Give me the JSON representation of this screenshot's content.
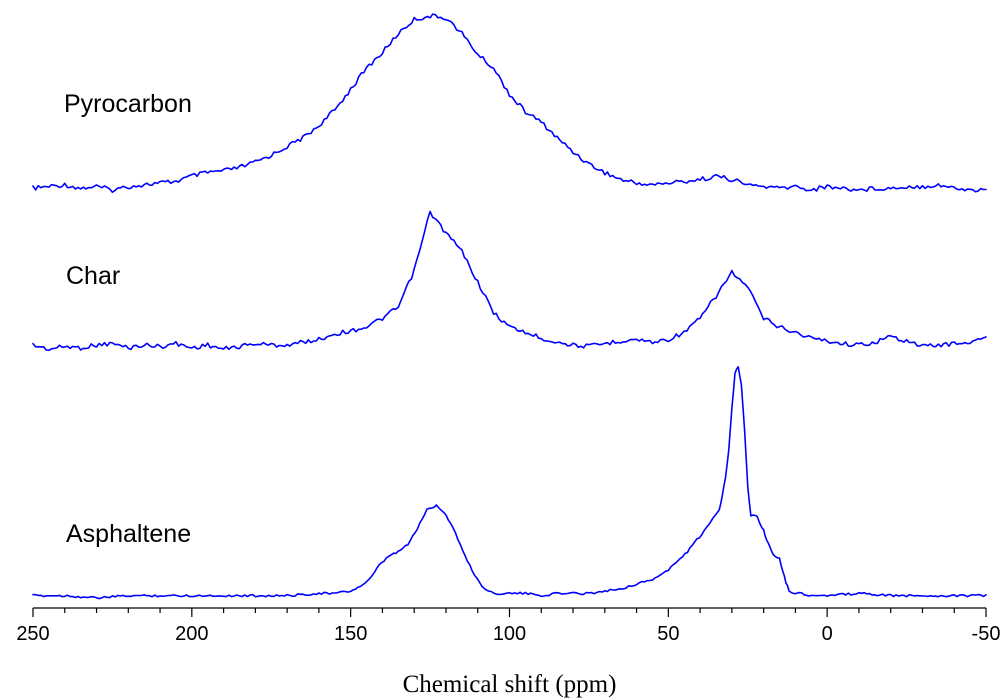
{
  "chart_data": {
    "type": "line",
    "title": "",
    "xlabel": "Chemical shift (ppm)",
    "ylabel": "",
    "xlim": [
      250,
      -50
    ],
    "x_reversed": true,
    "grid": false,
    "legend": "none (series labelled inline at left of each trace)",
    "xticks": [
      250,
      200,
      150,
      100,
      50,
      0,
      -50
    ],
    "xtick_labels": [
      "250",
      "200",
      "150",
      "100",
      "50",
      "0",
      "-50"
    ],
    "line_color": "#0000ff",
    "series": [
      {
        "name": "Pyrocarbon",
        "x": [
          250,
          245,
          240,
          235,
          230,
          225,
          220,
          215,
          210,
          205,
          200,
          195,
          190,
          185,
          180,
          175,
          170,
          165,
          160,
          155,
          150,
          145,
          140,
          135,
          130,
          125,
          120,
          115,
          110,
          105,
          100,
          95,
          90,
          85,
          80,
          75,
          70,
          65,
          60,
          55,
          50,
          45,
          40,
          35,
          30,
          25,
          20,
          15,
          10,
          5,
          0,
          -5,
          -10,
          -15,
          -20,
          -25,
          -30,
          -35,
          -40,
          -45,
          -50
        ],
        "y": [
          0.01,
          0.02,
          0.03,
          0.01,
          0.02,
          0.0,
          0.02,
          0.03,
          0.04,
          0.05,
          0.08,
          0.1,
          0.11,
          0.13,
          0.16,
          0.2,
          0.25,
          0.3,
          0.37,
          0.46,
          0.58,
          0.7,
          0.79,
          0.9,
          0.98,
          1.0,
          0.99,
          0.9,
          0.78,
          0.7,
          0.55,
          0.45,
          0.39,
          0.3,
          0.22,
          0.15,
          0.1,
          0.06,
          0.04,
          0.03,
          0.04,
          0.05,
          0.06,
          0.08,
          0.06,
          0.03,
          0.02,
          0.01,
          0.02,
          0.0,
          0.02,
          0.01,
          0.0,
          0.01,
          0.01,
          0.02,
          0.02,
          0.03,
          0.01,
          0.0,
          0.0
        ]
      },
      {
        "name": "Char",
        "x": [
          250,
          245,
          240,
          235,
          230,
          225,
          220,
          215,
          210,
          205,
          200,
          195,
          190,
          185,
          180,
          175,
          170,
          165,
          160,
          155,
          150,
          145,
          140,
          135,
          130,
          125,
          120,
          115,
          110,
          105,
          100,
          95,
          90,
          85,
          80,
          75,
          70,
          65,
          60,
          55,
          50,
          45,
          40,
          35,
          30,
          25,
          20,
          15,
          10,
          5,
          0,
          -5,
          -10,
          -15,
          -20,
          -25,
          -30,
          -35,
          -40,
          -45,
          -50
        ],
        "y": [
          0.05,
          0.02,
          0.04,
          0.03,
          0.05,
          0.06,
          0.03,
          0.05,
          0.04,
          0.06,
          0.03,
          0.05,
          0.02,
          0.04,
          0.06,
          0.05,
          0.05,
          0.07,
          0.09,
          0.13,
          0.15,
          0.18,
          0.24,
          0.32,
          0.58,
          1.0,
          0.85,
          0.72,
          0.5,
          0.28,
          0.18,
          0.14,
          0.1,
          0.07,
          0.05,
          0.04,
          0.06,
          0.08,
          0.09,
          0.07,
          0.09,
          0.14,
          0.24,
          0.4,
          0.57,
          0.46,
          0.24,
          0.18,
          0.14,
          0.1,
          0.08,
          0.06,
          0.05,
          0.07,
          0.11,
          0.08,
          0.04,
          0.05,
          0.06,
          0.07,
          0.1
        ]
      },
      {
        "name": "Asphaltene",
        "x": [
          250,
          240,
          230,
          220,
          210,
          200,
          190,
          180,
          170,
          160,
          155,
          150,
          147,
          144,
          141,
          138,
          135,
          132,
          129,
          126,
          123,
          120,
          117,
          114,
          111,
          108,
          105,
          100,
          95,
          90,
          85,
          80,
          75,
          70,
          65,
          60,
          55,
          50,
          47,
          44,
          41,
          38,
          36,
          34,
          33,
          32,
          31,
          30,
          29,
          28,
          27,
          26,
          25,
          24,
          23,
          22,
          21,
          20,
          19,
          18,
          17,
          16,
          15,
          14,
          13,
          12,
          10,
          8,
          5,
          0,
          -10,
          -20,
          -30,
          -40,
          -50
        ],
        "y": [
          0.01,
          0.01,
          0.0,
          0.01,
          0.01,
          0.01,
          0.01,
          0.01,
          0.01,
          0.02,
          0.02,
          0.03,
          0.05,
          0.08,
          0.14,
          0.18,
          0.2,
          0.23,
          0.3,
          0.38,
          0.4,
          0.36,
          0.28,
          0.18,
          0.1,
          0.04,
          0.02,
          0.02,
          0.02,
          0.01,
          0.02,
          0.02,
          0.02,
          0.03,
          0.04,
          0.06,
          0.08,
          0.12,
          0.16,
          0.2,
          0.25,
          0.3,
          0.34,
          0.38,
          0.44,
          0.52,
          0.64,
          0.82,
          0.97,
          1.0,
          0.92,
          0.72,
          0.48,
          0.35,
          0.36,
          0.35,
          0.32,
          0.29,
          0.25,
          0.22,
          0.19,
          0.18,
          0.17,
          0.12,
          0.07,
          0.03,
          0.02,
          0.02,
          0.01,
          0.01,
          0.02,
          0.01,
          0.01,
          0.01,
          0.01
        ]
      }
    ]
  }
}
